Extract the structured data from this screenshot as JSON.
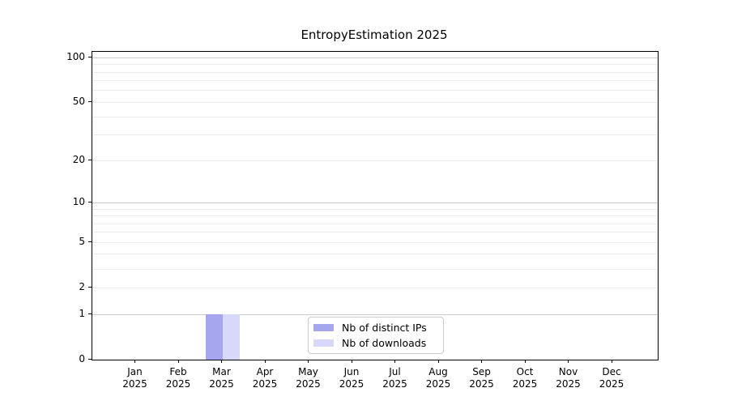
{
  "chart_data": {
    "type": "bar",
    "title": "EntropyEstimation 2025",
    "categories": [
      "Jan 2025",
      "Feb 2025",
      "Mar 2025",
      "Apr 2025",
      "May 2025",
      "Jun 2025",
      "Jul 2025",
      "Aug 2025",
      "Sep 2025",
      "Oct 2025",
      "Nov 2025",
      "Dec 2025"
    ],
    "series": [
      {
        "name": "Nb of distinct IPs",
        "color": "#a6a6ee",
        "values": [
          0,
          0,
          1,
          0,
          0,
          0,
          0,
          0,
          0,
          0,
          0,
          0
        ]
      },
      {
        "name": "Nb of downloads",
        "color": "#d8d9fa",
        "values": [
          0,
          0,
          1,
          0,
          0,
          0,
          0,
          0,
          0,
          0,
          0,
          0
        ]
      }
    ],
    "yscale": "log1p",
    "ylim": [
      0,
      110
    ],
    "yticks": [
      0,
      1,
      2,
      5,
      10,
      20,
      50,
      100
    ],
    "y_major_gridlines": [
      1,
      10,
      100
    ],
    "grid": "horizontal major+minor",
    "legend_position": "bottom-center",
    "colors": {
      "major_grid": "#cccccc",
      "minor_grid": "#ebebeb",
      "axis": "#000000",
      "background": "#ffffff"
    }
  }
}
